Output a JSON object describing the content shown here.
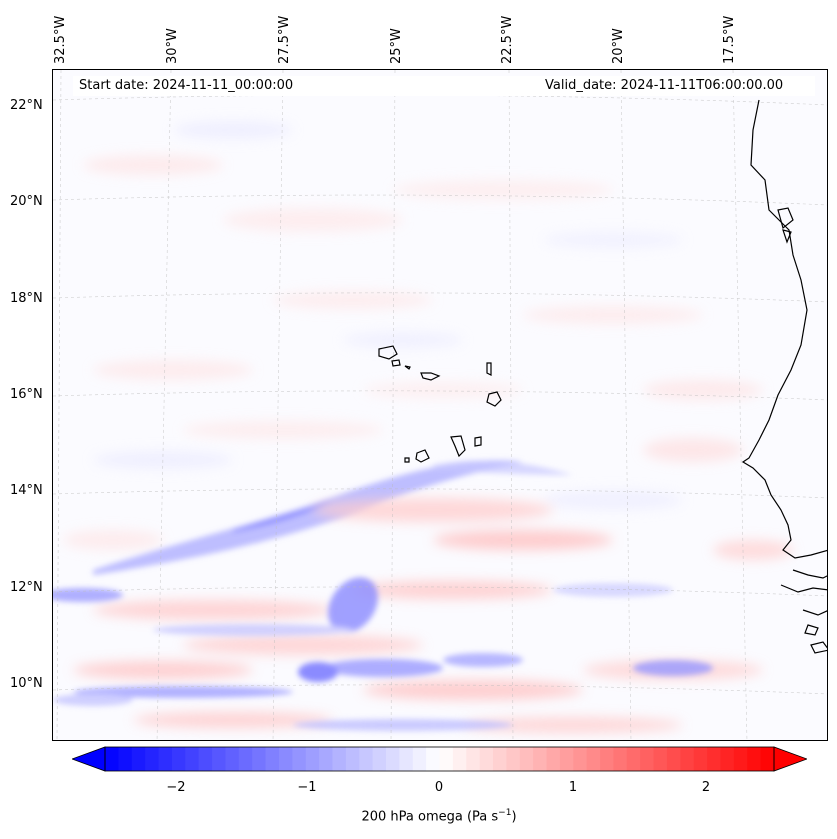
{
  "map": {
    "variable_label_main": "200 hPa omega (Pa s",
    "variable_label_exp": "−1",
    "variable_label_end": ")",
    "start_date": "Start date: 2024-11-11_00:00:00",
    "valid_date": "Valid_date: 2024-11-11T06:00:00.00",
    "lon_labels": [
      "32.5°W",
      "30°W",
      "27.5°W",
      "25°W",
      "22.5°W",
      "20°W",
      "17.5°W"
    ],
    "lat_labels": [
      "22°N",
      "20°N",
      "18°N",
      "16°N",
      "14°N",
      "12°N",
      "10°N"
    ],
    "colorbar": {
      "min": -2.6,
      "max": 2.6,
      "ticks": [
        "−2",
        "−1",
        "0",
        "1",
        "2"
      ],
      "tick_values": [
        -2,
        -1,
        0,
        1,
        2
      ],
      "negative_color": "#0000ff",
      "positive_color": "#ff0000",
      "neutral_color": "#ffffff",
      "extend": "both"
    },
    "coastline_color": "#000000",
    "gridline_color": "#bbbbbb"
  }
}
